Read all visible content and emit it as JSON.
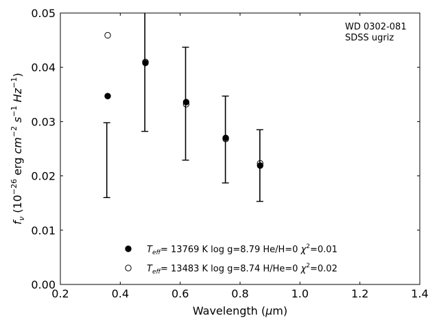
{
  "chart_data": {
    "type": "scatter",
    "xlabel_main": "Wavelength (",
    "xlabel_mu": "μ",
    "xlabel_tail": "m)",
    "ylabel_f": "f",
    "ylabel_sub": "ν",
    "ylabel_rest1": " (10",
    "ylabel_sup1": "−26",
    "ylabel_erg": " erg ",
    "ylabel_cm": "cm",
    "ylabel_sup2": "−2",
    "ylabel_s": " s",
    "ylabel_sup3": "−1",
    "ylabel_hz": " Hz",
    "ylabel_sup4": "−1",
    "ylabel_close": ")",
    "xlim": [
      0.2,
      1.4
    ],
    "ylim": [
      0.0,
      0.05
    ],
    "xticks": [
      "0.2",
      "0.4",
      "0.6",
      "0.8",
      "1.0",
      "1.2",
      "1.4"
    ],
    "yticks": [
      "0.00",
      "0.01",
      "0.02",
      "0.03",
      "0.04",
      "0.05"
    ],
    "annotation": [
      "WD 0302-081",
      "SDSS ugriz"
    ],
    "observed": {
      "x": [
        0.355,
        0.482,
        0.618,
        0.751,
        0.866
      ],
      "y": [
        0.0229,
        0.0411,
        0.0333,
        0.0267,
        0.0219
      ],
      "err": [
        0.0069,
        0.0129,
        0.0104,
        0.008,
        0.0066
      ]
    },
    "series": [
      {
        "marker": "filled",
        "x": [
          0.358,
          0.484,
          0.62,
          0.752,
          0.867
        ],
        "y": [
          0.0347,
          0.0408,
          0.0336,
          0.027,
          0.0219
        ],
        "legend": {
          "t": "T",
          "sub": "eff",
          "rest": "= 13769 K  log g=8.79  He/H=0  ",
          "chi": "χ",
          "sup": "2",
          "val": "=0.01"
        }
      },
      {
        "marker": "open",
        "x": [
          0.358,
          0.484,
          0.62,
          0.752,
          0.867
        ],
        "y": [
          0.0459,
          0.041,
          0.0332,
          0.0268,
          0.0223
        ],
        "legend": {
          "t": "T",
          "sub": "eff",
          "rest": "= 13483 K  log g=8.74  H/He=0  ",
          "chi": "χ",
          "sup": "2",
          "val": "=0.02"
        }
      }
    ]
  }
}
